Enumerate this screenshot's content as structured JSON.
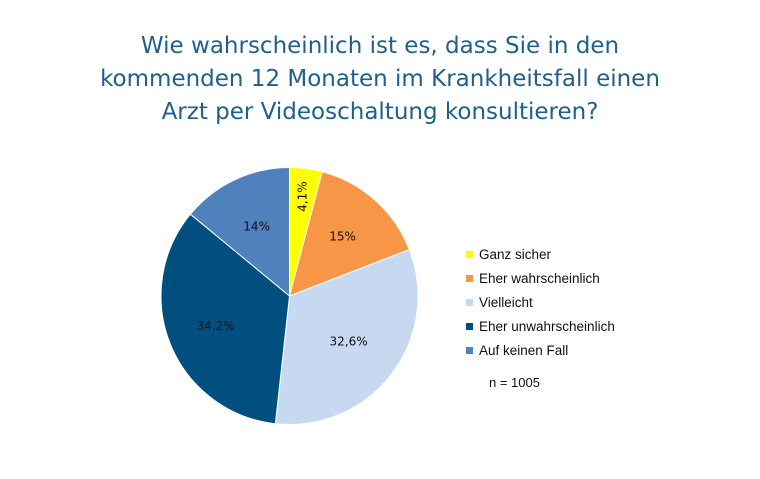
{
  "title_lines": [
    "Wie wahrscheinlich ist es, dass Sie in den",
    "kommenden 12 Monaten im Krankheitsfall einen",
    "Arzt per Videoschaltung konsultieren?"
  ],
  "legend": [
    {
      "label": "Ganz sicher",
      "color": "#ffff00"
    },
    {
      "label": "Eher wahrscheinlich",
      "color": "#f79646"
    },
    {
      "label": "Vielleicht",
      "color": "#c6d9f1"
    },
    {
      "label": "Eher unwahrscheinlich",
      "color": "#004f7e"
    },
    {
      "label": "Auf keinen Fall",
      "color": "#4f81bd"
    }
  ],
  "sample_note": "n = 1005",
  "slice_labels": [
    "4,1%",
    "15%",
    "32,6%",
    "34,2%",
    "14%"
  ],
  "chart_data": {
    "type": "pie",
    "title": "Wie wahrscheinlich ist es, dass Sie in den kommenden 12 Monaten im Krankheitsfall einen Arzt per Videoschaltung konsultieren?",
    "categories": [
      "Ganz sicher",
      "Eher wahrscheinlich",
      "Vielleicht",
      "Eher unwahrscheinlich",
      "Auf keinen Fall"
    ],
    "values": [
      4.1,
      15,
      32.6,
      34.2,
      14
    ],
    "data_labels": [
      "4,1%",
      "15%",
      "32,6%",
      "34,2%",
      "14%"
    ],
    "colors": [
      "#ffff00",
      "#f79646",
      "#c6d9f1",
      "#004f7e",
      "#4f81bd"
    ],
    "legend_position": "right",
    "annotations": [
      "n = 1005"
    ],
    "start_angle": "12 o'clock, clockwise"
  }
}
